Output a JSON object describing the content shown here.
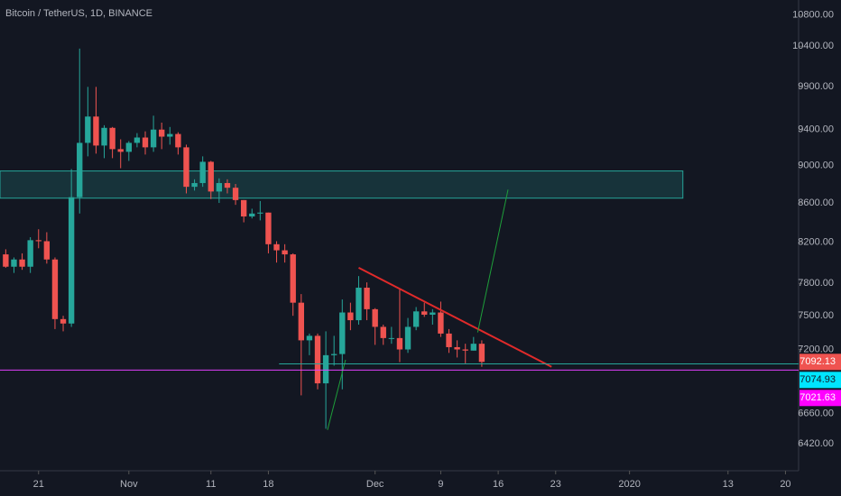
{
  "chart_data": {
    "type": "candlestick",
    "title": "Bitcoin / TetherUS, 1D, BINANCE",
    "log_scale": true,
    "grid": false,
    "up_color": "#26a69a",
    "down_color": "#ef5350",
    "xlim": [
      16.3,
      113.6
    ],
    "xticks": [
      21,
      {
        "value": 32,
        "label": "Nov"
      },
      {
        "value": 42,
        "label": "11"
      },
      {
        "value": 49,
        "label": "18"
      },
      {
        "value": 62,
        "label": "Dec"
      },
      {
        "value": 70,
        "label": "9"
      },
      {
        "value": 77,
        "label": "16"
      },
      {
        "value": 84,
        "label": "23"
      },
      {
        "value": 93,
        "label": "2020"
      },
      {
        "value": 105,
        "label": "13"
      },
      {
        "value": 112,
        "label": "20"
      }
    ],
    "ylim": [
      6215,
      11000
    ],
    "yticks": [
      {
        "value": 10800,
        "label": "10800.00"
      },
      {
        "value": 10400,
        "label": "10400.00"
      },
      {
        "value": 9900,
        "label": "9900.00"
      },
      {
        "value": 9400,
        "label": "9400.00"
      },
      {
        "value": 9000,
        "label": "9000.00"
      },
      {
        "value": 8600,
        "label": "8600.00"
      },
      {
        "value": 8200,
        "label": "8200.00"
      },
      {
        "value": 7800,
        "label": "7800.00"
      },
      {
        "value": 7500,
        "label": "7500.00"
      },
      {
        "value": 7200,
        "label": "7200.00"
      },
      {
        "value": 6660,
        "label": "6660.00"
      },
      {
        "value": 6420,
        "label": "6420.00"
      }
    ],
    "x": [
      17,
      18,
      19,
      20,
      21,
      22,
      23,
      24,
      25,
      26,
      27,
      28,
      29,
      30,
      31,
      32,
      33,
      34,
      35,
      36,
      37,
      38,
      39,
      40,
      41,
      42,
      43,
      44,
      45,
      46,
      47,
      48,
      49,
      50,
      51,
      52,
      53,
      54,
      55,
      56,
      57,
      58,
      59,
      60,
      61,
      62,
      63,
      64,
      65,
      66,
      67,
      68,
      69,
      70,
      71,
      72,
      73,
      74,
      75
    ],
    "open": [
      8080,
      7960,
      8030,
      7960,
      8220,
      8210,
      8030,
      7470,
      7430,
      8660,
      9250,
      9550,
      9220,
      9420,
      9180,
      9150,
      9250,
      9310,
      9200,
      9400,
      9320,
      9350,
      9200,
      8770,
      8810,
      9040,
      8720,
      8810,
      8760,
      8630,
      8460,
      8490,
      8500,
      8180,
      8120,
      8080,
      7620,
      7280,
      7320,
      6910,
      7150,
      7160,
      7530,
      7460,
      7760,
      7560,
      7400,
      7300,
      7300,
      7200,
      7400,
      7540,
      7510,
      7530,
      7340,
      7220,
      7200,
      7190,
      7250
    ],
    "high": [
      8130,
      8050,
      8090,
      8250,
      8330,
      8300,
      8050,
      7500,
      8960,
      10370,
      9900,
      9900,
      9450,
      9430,
      9290,
      9270,
      9360,
      9380,
      9560,
      9480,
      9430,
      9370,
      9230,
      8850,
      9100,
      9050,
      8860,
      8850,
      8800,
      8630,
      8540,
      8620,
      8500,
      8210,
      8180,
      8090,
      7700,
      7340,
      7340,
      7360,
      7320,
      7650,
      7620,
      7870,
      7810,
      7570,
      7420,
      7400,
      7750,
      7480,
      7580,
      7620,
      7560,
      7630,
      7380,
      7280,
      7250,
      7310,
      7280
    ],
    "low": [
      7950,
      7900,
      7930,
      7900,
      8140,
      7990,
      7380,
      7360,
      7400,
      8490,
      9100,
      9130,
      9080,
      9080,
      8970,
      9050,
      9200,
      9120,
      9150,
      9180,
      9230,
      9120,
      8700,
      8730,
      8770,
      8640,
      8600,
      8700,
      8580,
      8400,
      8440,
      8420,
      8090,
      8000,
      8000,
      7500,
      6810,
      7150,
      6860,
      6540,
      7060,
      6860,
      7370,
      7420,
      7460,
      7240,
      7240,
      7250,
      7090,
      7170,
      7370,
      7490,
      7420,
      7310,
      7170,
      7130,
      7080,
      7190,
      7050
    ],
    "close": [
      7960,
      8030,
      7960,
      8220,
      8210,
      8030,
      7470,
      7430,
      8660,
      9250,
      9550,
      9220,
      9420,
      9180,
      9150,
      9250,
      9310,
      9200,
      9400,
      9320,
      9350,
      9200,
      8770,
      8810,
      9040,
      8720,
      8810,
      8760,
      8630,
      8460,
      8490,
      8500,
      8180,
      8120,
      8080,
      7620,
      7280,
      7320,
      6910,
      7150,
      7160,
      7530,
      7460,
      7760,
      7560,
      7400,
      7300,
      7300,
      7200,
      7400,
      7540,
      7510,
      7530,
      7340,
      7220,
      7200,
      7190,
      7250,
      7092.13
    ],
    "drawings": [
      {
        "type": "zone",
        "color": "#26a69a",
        "points": [
          [
            16.3,
            8940
          ],
          [
            99.5,
            8650
          ]
        ]
      },
      {
        "type": "line",
        "color": "#e02a2a",
        "points": [
          [
            60,
            7950
          ],
          [
            83.5,
            7050
          ]
        ]
      },
      {
        "type": "line",
        "color": "#1e9e3a",
        "points": [
          [
            56.2,
            6530
          ],
          [
            58.4,
            7110
          ]
        ]
      },
      {
        "type": "line",
        "color": "#1e9e3a",
        "points": [
          [
            74.5,
            7350
          ],
          [
            78.2,
            8740
          ]
        ]
      },
      {
        "type": "hline",
        "color": "#26a69a",
        "points": [
          [
            50.3,
            7074.93
          ],
          [
            113.6,
            7074.93
          ]
        ]
      },
      {
        "type": "hline",
        "color": "#e040fb",
        "points": [
          [
            16.3,
            7021.63
          ],
          [
            113.6,
            7021.63
          ]
        ]
      }
    ],
    "price_labels": [
      {
        "value": 7092.13,
        "label": "7092.13",
        "color": "#ef5350"
      },
      {
        "value": 7074.93,
        "label": "7074.93",
        "color": "#00e5ff"
      },
      {
        "value": 7021.63,
        "label": "7021.63",
        "color": "#ff00ff"
      }
    ]
  }
}
